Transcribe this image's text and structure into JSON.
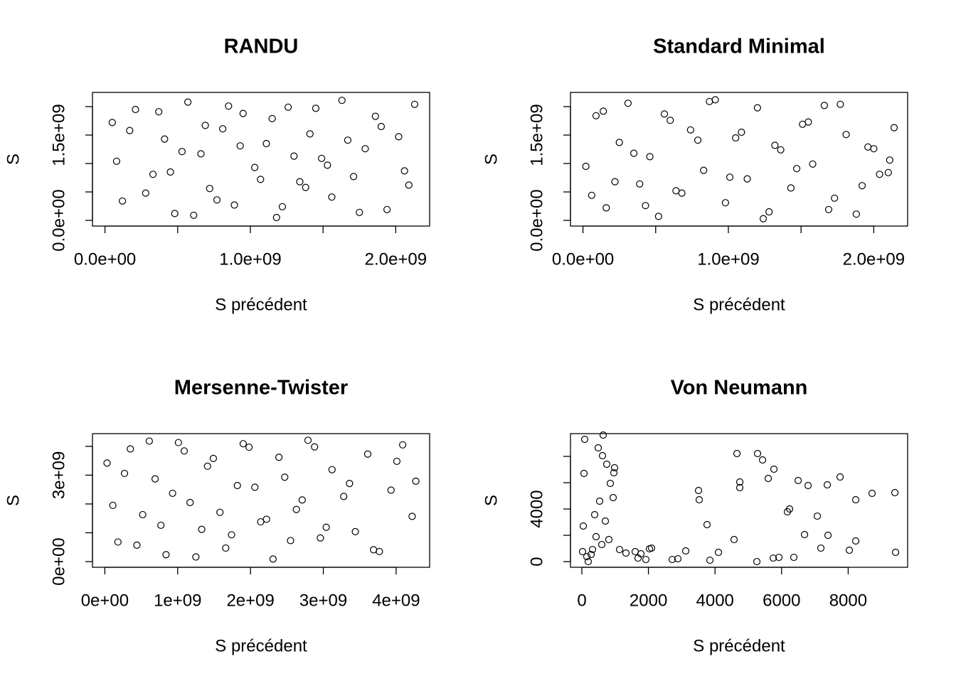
{
  "chart_data": [
    {
      "type": "scatter",
      "title": "RANDU",
      "xlabel": "S précédent",
      "ylabel": "S",
      "xlim": [
        -86000000.0,
        2233000000.0
      ],
      "ylim": [
        -100000000.0,
        2250000000.0
      ],
      "xticks": [
        {
          "value": 0,
          "label": "0.0e+00"
        },
        {
          "value": 500000000.0,
          "label": null
        },
        {
          "value": 1000000000.0,
          "label": "1.0e+09"
        },
        {
          "value": 1500000000.0,
          "label": null
        },
        {
          "value": 2000000000.0,
          "label": "2.0e+09"
        }
      ],
      "yticks": [
        {
          "value": 0,
          "label": "0.0e+00"
        },
        {
          "value": 500000000.0,
          "label": null
        },
        {
          "value": 1000000000.0,
          "label": null
        },
        {
          "value": 1500000000.0,
          "label": "1.5e+09"
        },
        {
          "value": 2000000000.0,
          "label": null
        }
      ],
      "x": [
        50000000.0,
        120000000.0,
        210000000.0,
        330000000.0,
        410000000.0,
        480000000.0,
        570000000.0,
        660000000.0,
        720000000.0,
        810000000.0,
        890000000.0,
        950000000.0,
        1030000000.0,
        1110000000.0,
        1180000000.0,
        1260000000.0,
        1340000000.0,
        1410000000.0,
        1490000000.0,
        1560000000.0,
        1630000000.0,
        1710000000.0,
        1790000000.0,
        1860000000.0,
        1940000000.0,
        2020000000.0,
        2090000000.0,
        2130000000.0,
        80000000.0,
        170000000.0,
        280000000.0,
        370000000.0,
        450000000.0,
        530000000.0,
        610000000.0,
        690000000.0,
        770000000.0,
        850000000.0,
        930000000.0,
        1070000000.0,
        1150000000.0,
        1220000000.0,
        1300000000.0,
        1380000000.0,
        1450000000.0,
        1530000000.0,
        1670000000.0,
        1750000000.0,
        1900000000.0,
        2060000000.0
      ],
      "y": [
        1720000000.0,
        340000000.0,
        1950000000.0,
        810000000.0,
        1430000000.0,
        120000000.0,
        2080000000.0,
        1170000000.0,
        560000000.0,
        1610000000.0,
        270000000.0,
        1880000000.0,
        930000000.0,
        1350000000.0,
        50000000.0,
        1990000000.0,
        680000000.0,
        1520000000.0,
        1090000000.0,
        410000000.0,
        2110000000.0,
        770000000.0,
        1260000000.0,
        1830000000.0,
        190000000.0,
        1470000000.0,
        620000000.0,
        2040000000.0,
        1040000000.0,
        1580000000.0,
        480000000.0,
        1910000000.0,
        850000000.0,
        1210000000.0,
        90000000.0,
        1670000000.0,
        360000000.0,
        2010000000.0,
        1310000000.0,
        720000000.0,
        1790000000.0,
        240000000.0,
        1130000000.0,
        580000000.0,
        1970000000.0,
        970000000.0,
        1410000000.0,
        140000000.0,
        1650000000.0,
        870000000.0
      ]
    },
    {
      "type": "scatter",
      "title": "Standard Minimal",
      "xlabel": "S précédent",
      "ylabel": "S",
      "xlim": [
        -86000000.0,
        2233000000.0
      ],
      "ylim": [
        -100000000.0,
        2250000000.0
      ],
      "xticks": [
        {
          "value": 0,
          "label": "0.0e+00"
        },
        {
          "value": 500000000.0,
          "label": null
        },
        {
          "value": 1000000000.0,
          "label": "1.0e+09"
        },
        {
          "value": 1500000000.0,
          "label": null
        },
        {
          "value": 2000000000.0,
          "label": "2.0e+09"
        }
      ],
      "yticks": [
        {
          "value": 0,
          "label": "0.0e+00"
        },
        {
          "value": 500000000.0,
          "label": null
        },
        {
          "value": 1000000000.0,
          "label": null
        },
        {
          "value": 1500000000.0,
          "label": "1.5e+09"
        },
        {
          "value": 2000000000.0,
          "label": null
        }
      ],
      "x": [
        20000000.0,
        90000000.0,
        160000000.0,
        250000000.0,
        310000000.0,
        390000000.0,
        460000000.0,
        520000000.0,
        600000000.0,
        680000000.0,
        740000000.0,
        830000000.0,
        910000000.0,
        980000000.0,
        1050000000.0,
        1130000000.0,
        1200000000.0,
        1280000000.0,
        1360000000.0,
        1430000000.0,
        1510000000.0,
        1580000000.0,
        1660000000.0,
        1730000000.0,
        1810000000.0,
        1880000000.0,
        1960000000.0,
        2040000000.0,
        2110000000.0,
        2140000000.0,
        60000000.0,
        140000000.0,
        220000000.0,
        350000000.0,
        430000000.0,
        560000000.0,
        640000000.0,
        790000000.0,
        870000000.0,
        1010000000.0,
        1090000000.0,
        1240000000.0,
        1320000000.0,
        1470000000.0,
        1550000000.0,
        1690000000.0,
        1770000000.0,
        1920000000.0,
        2000000000.0,
        2100000000.0
      ],
      "y": [
        950000000.0,
        1840000000.0,
        220000000.0,
        1370000000.0,
        2060000000.0,
        640000000.0,
        1120000000.0,
        70000000.0,
        1760000000.0,
        480000000.0,
        1590000000.0,
        880000000.0,
        2120000000.0,
        310000000.0,
        1450000000.0,
        730000000.0,
        1980000000.0,
        150000000.0,
        1240000000.0,
        570000000.0,
        1690000000.0,
        990000000.0,
        2020000000.0,
        390000000.0,
        1510000000.0,
        110000000.0,
        1290000000.0,
        810000000.0,
        1060000000.0,
        1630000000.0,
        440000000.0,
        1920000000.0,
        680000000.0,
        1180000000.0,
        260000000.0,
        1870000000.0,
        520000000.0,
        1410000000.0,
        2090000000.0,
        760000000.0,
        1550000000.0,
        30000000.0,
        1320000000.0,
        910000000.0,
        1730000000.0,
        190000000.0,
        2040000000.0,
        610000000.0,
        1260000000.0,
        840000000.0
      ]
    },
    {
      "type": "scatter",
      "title": "Mersenne-Twister",
      "xlabel": "S précédent",
      "ylabel": "S",
      "xlim": [
        -170000000.0,
        4460000000.0
      ],
      "ylim": [
        -197000000.0,
        4440000000.0
      ],
      "xticks": [
        {
          "value": 0,
          "label": "0e+00"
        },
        {
          "value": 1000000000.0,
          "label": "1e+09"
        },
        {
          "value": 2000000000.0,
          "label": "2e+09"
        },
        {
          "value": 3000000000.0,
          "label": "3e+09"
        },
        {
          "value": 4000000000.0,
          "label": "4e+09"
        }
      ],
      "yticks": [
        {
          "value": 0,
          "label": "0e+00"
        },
        {
          "value": 1000000000.0,
          "label": null
        },
        {
          "value": 2000000000.0,
          "label": null
        },
        {
          "value": 3000000000.0,
          "label": "3e+09"
        },
        {
          "value": 4000000000.0,
          "label": null
        }
      ],
      "x": [
        30000000.0,
        180000000.0,
        350000000.0,
        520000000.0,
        690000000.0,
        840000000.0,
        1010000000.0,
        1170000000.0,
        1330000000.0,
        1490000000.0,
        1660000000.0,
        1820000000.0,
        1980000000.0,
        2140000000.0,
        2310000000.0,
        2470000000.0,
        2630000000.0,
        2790000000.0,
        2960000000.0,
        3120000000.0,
        3280000000.0,
        3440000000.0,
        3610000000.0,
        3770000000.0,
        3930000000.0,
        4090000000.0,
        4220000000.0,
        4270000000.0,
        110000000.0,
        270000000.0,
        440000000.0,
        610000000.0,
        770000000.0,
        930000000.0,
        1090000000.0,
        1250000000.0,
        1410000000.0,
        1580000000.0,
        1740000000.0,
        1900000000.0,
        2060000000.0,
        2220000000.0,
        2390000000.0,
        2550000000.0,
        2710000000.0,
        2880000000.0,
        3040000000.0,
        3360000000.0,
        3690000000.0,
        4010000000.0
      ],
      "y": [
        3420000000.0,
        680000000.0,
        3910000000.0,
        1630000000.0,
        2870000000.0,
        240000000.0,
        4130000000.0,
        2050000000.0,
        1120000000.0,
        3580000000.0,
        470000000.0,
        2640000000.0,
        3970000000.0,
        1380000000.0,
        90000000.0,
        2930000000.0,
        1810000000.0,
        4210000000.0,
        820000000.0,
        3190000000.0,
        2260000000.0,
        1040000000.0,
        3730000000.0,
        350000000.0,
        2480000000.0,
        4050000000.0,
        1570000000.0,
        2790000000.0,
        1950000000.0,
        3060000000.0,
        570000000.0,
        4180000000.0,
        1260000000.0,
        2370000000.0,
        3840000000.0,
        160000000.0,
        3310000000.0,
        1710000000.0,
        930000000.0,
        4090000000.0,
        2580000000.0,
        1470000000.0,
        3620000000.0,
        730000000.0,
        2140000000.0,
        3980000000.0,
        1190000000.0,
        2710000000.0,
        410000000.0,
        3480000000.0
      ]
    },
    {
      "type": "scatter",
      "title": "Von Neumann",
      "xlabel": "S précédent",
      "ylabel": "S",
      "xlim": [
        -342,
        9786
      ],
      "ylim": [
        -430,
        9730
      ],
      "xticks": [
        0,
        2000,
        4000,
        6000,
        8000
      ],
      "yticks": [
        0,
        {
          "value": 2000,
          "label": null
        },
        4000,
        {
          "value": 6000,
          "label": null
        },
        {
          "value": 8000,
          "label": null
        }
      ],
      "x": [
        85,
        64,
        43,
        21,
        150,
        192,
        278,
        321,
        385,
        427,
        491,
        534,
        598,
        641,
        620,
        705,
        748,
        812,
        855,
        940,
        983,
        962,
        1133,
        1325,
        1603,
        1688,
        1774,
        1923,
        2030,
        2094,
        2714,
        2885,
        3120,
        3505,
        3526,
        3761,
        3847,
        4103,
        4573,
        4659,
        4744,
        4744,
        5257,
        5278,
        5428,
        5599,
        5770,
        5749,
        5919,
        6176,
        6240,
        6368,
        6497,
        6689,
        6796,
        7073,
        7180,
        7373,
        7394,
        7757,
        8035,
        8227,
        8227,
        8719,
        9403,
        9424
      ],
      "y": [
        9297,
        6703,
        2703,
        757,
        378,
        0,
        541,
        919,
        3568,
        1892,
        8649,
        4595,
        1297,
        9622,
        8054,
        3081,
        7405,
        1676,
        5946,
        4865,
        7135,
        6757,
        919,
        649,
        757,
        270,
        595,
        162,
        973,
        1027,
        162,
        216,
        811,
        5405,
        4703,
        2811,
        108,
        703,
        1676,
        8216,
        6054,
        5622,
        0,
        8216,
        7730,
        6324,
        7027,
        270,
        324,
        3784,
        4000,
        324,
        6162,
        2054,
        5784,
        3459,
        1027,
        5838,
        2000,
        6432,
        865,
        4703,
        1568,
        5189,
        5243,
        703
      ]
    }
  ]
}
